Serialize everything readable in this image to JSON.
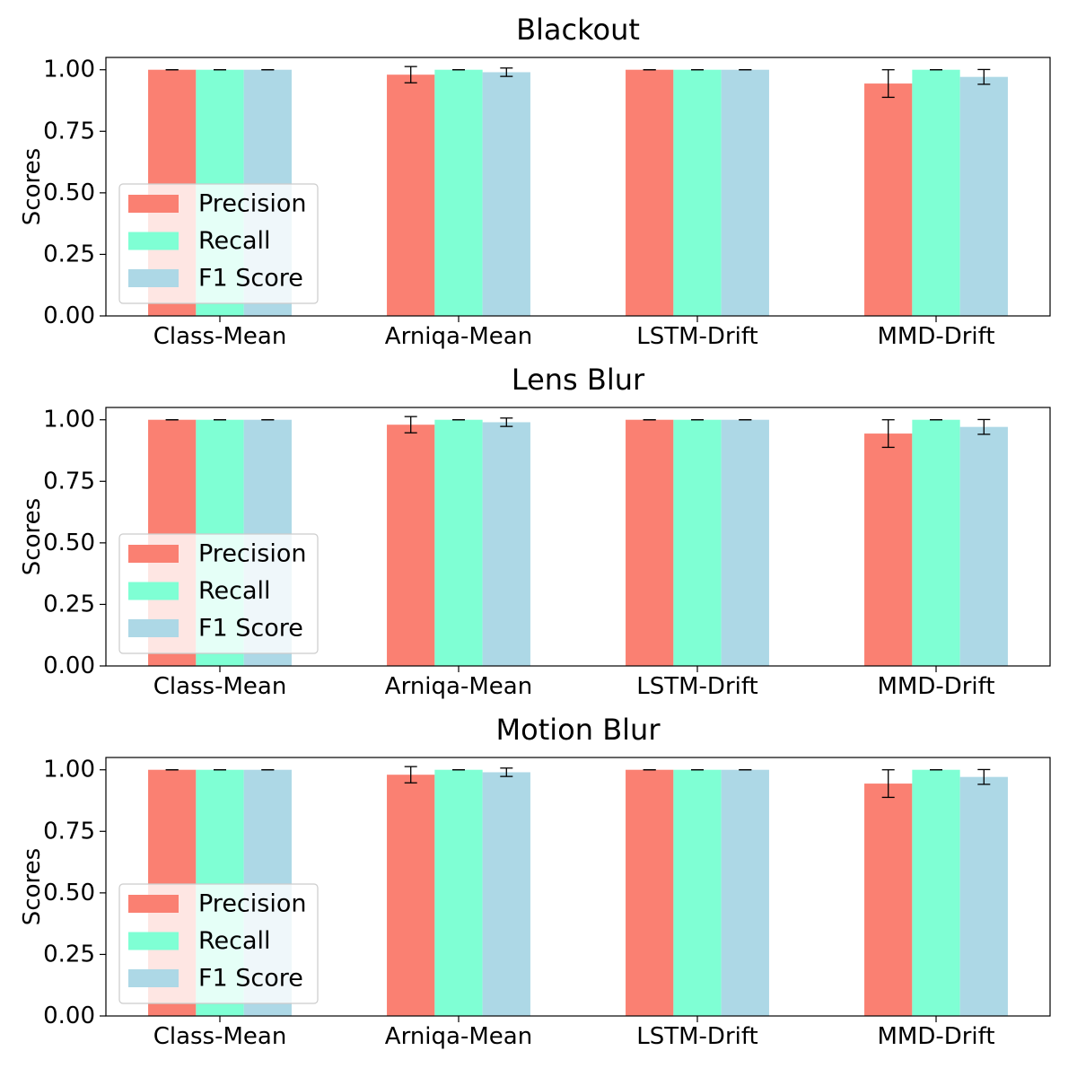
{
  "chart_data": [
    {
      "type": "bar",
      "title": "Blackout",
      "xlabel": "",
      "ylabel": "Scores",
      "ylim": [
        0,
        1.05
      ],
      "yticks": [
        "0.00",
        "0.25",
        "0.50",
        "0.75",
        "1.00"
      ],
      "categories": [
        "Class-Mean",
        "Arniqa-Mean",
        "LSTM-Drift",
        "MMD-Drift"
      ],
      "series": [
        {
          "name": "Precision",
          "color": "#fa8072",
          "values": [
            1.0,
            0.98,
            1.0,
            0.944
          ],
          "errors": [
            0.0,
            0.033,
            0.0,
            0.056
          ]
        },
        {
          "name": "Recall",
          "color": "#7fffd4",
          "values": [
            1.0,
            1.0,
            1.0,
            1.0
          ],
          "errors": [
            0.0,
            0.0,
            0.0,
            0.0
          ]
        },
        {
          "name": "F1 Score",
          "color": "#add8e6",
          "values": [
            1.0,
            0.99,
            1.0,
            0.971
          ],
          "errors": [
            0.0,
            0.017,
            0.0,
            0.03
          ]
        }
      ],
      "legend": "center-left",
      "grid": false
    },
    {
      "type": "bar",
      "title": "Lens Blur",
      "xlabel": "",
      "ylabel": "Scores",
      "ylim": [
        0,
        1.05
      ],
      "yticks": [
        "0.00",
        "0.25",
        "0.50",
        "0.75",
        "1.00"
      ],
      "categories": [
        "Class-Mean",
        "Arniqa-Mean",
        "LSTM-Drift",
        "MMD-Drift"
      ],
      "series": [
        {
          "name": "Precision",
          "color": "#fa8072",
          "values": [
            1.0,
            0.98,
            1.0,
            0.944
          ],
          "errors": [
            0.0,
            0.033,
            0.0,
            0.056
          ]
        },
        {
          "name": "Recall",
          "color": "#7fffd4",
          "values": [
            1.0,
            1.0,
            1.0,
            1.0
          ],
          "errors": [
            0.0,
            0.0,
            0.0,
            0.0
          ]
        },
        {
          "name": "F1 Score",
          "color": "#add8e6",
          "values": [
            1.0,
            0.99,
            1.0,
            0.971
          ],
          "errors": [
            0.0,
            0.017,
            0.0,
            0.03
          ]
        }
      ],
      "legend": "center-left",
      "grid": false
    },
    {
      "type": "bar",
      "title": "Motion Blur",
      "xlabel": "",
      "ylabel": "Scores",
      "ylim": [
        0,
        1.05
      ],
      "yticks": [
        "0.00",
        "0.25",
        "0.50",
        "0.75",
        "1.00"
      ],
      "categories": [
        "Class-Mean",
        "Arniqa-Mean",
        "LSTM-Drift",
        "MMD-Drift"
      ],
      "series": [
        {
          "name": "Precision",
          "color": "#fa8072",
          "values": [
            1.0,
            0.98,
            1.0,
            0.944
          ],
          "errors": [
            0.0,
            0.033,
            0.0,
            0.056
          ]
        },
        {
          "name": "Recall",
          "color": "#7fffd4",
          "values": [
            1.0,
            1.0,
            1.0,
            1.0
          ],
          "errors": [
            0.0,
            0.0,
            0.0,
            0.0
          ]
        },
        {
          "name": "F1 Score",
          "color": "#add8e6",
          "values": [
            1.0,
            0.99,
            1.0,
            0.971
          ],
          "errors": [
            0.0,
            0.017,
            0.0,
            0.03
          ]
        }
      ],
      "legend": "center-left",
      "grid": false
    }
  ]
}
